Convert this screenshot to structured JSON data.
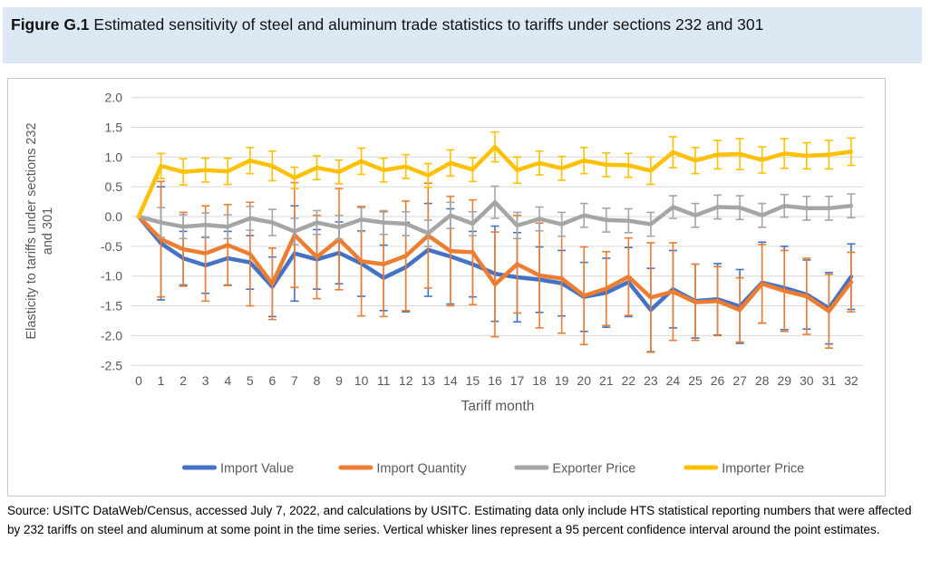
{
  "figure": {
    "label": "Figure G.1",
    "title_rest": " Estimated sensitivity of steel and aluminum trade statistics to tariffs under sections 232 and 301"
  },
  "source_note": "Source: USITC DataWeb/Census, accessed July 7, 2022, and calculations by USITC. Estimating data only include HTS statistical reporting numbers that were affected by 232 tariffs on steel and aluminum at some point in the time series. Vertical whisker lines represent a 95 percent confidence interval around the point estimates.",
  "colors": {
    "title_band_bg": "#dde8f5",
    "axis_text": "#595959",
    "gridline": "#d9d9d9",
    "chart_border": "#c9c9c9"
  },
  "chart_data": {
    "type": "line",
    "title": "Estimated sensitivity of steel and aluminum trade statistics to tariffs under sections 232 and 301",
    "xlabel": "Tariff month",
    "ylabel": "Elasticity to tariffs under sections 232 and 301",
    "ylabel_lines": [
      "Elasticity to tariffs under sections 232",
      "and 301"
    ],
    "x": [
      0,
      1,
      2,
      3,
      4,
      5,
      6,
      7,
      8,
      9,
      10,
      11,
      12,
      13,
      14,
      15,
      16,
      17,
      18,
      19,
      20,
      21,
      22,
      23,
      24,
      25,
      26,
      27,
      28,
      29,
      30,
      31,
      32
    ],
    "ylim": [
      -2.5,
      2.0
    ],
    "ytick_step": 0.5,
    "grid": true,
    "legend_position": "bottom",
    "error_bars": "95 percent confidence interval whiskers",
    "series": [
      {
        "name": "Import Value",
        "color": "#4472C4",
        "values": [
          0,
          -0.45,
          -0.7,
          -0.82,
          -0.7,
          -0.77,
          -1.18,
          -0.62,
          -0.72,
          -0.61,
          -0.79,
          -1.03,
          -0.85,
          -0.56,
          -0.67,
          -0.8,
          -0.96,
          -1.02,
          -1.06,
          -1.12,
          -1.35,
          -1.28,
          -1.1,
          -1.57,
          -1.22,
          -1.42,
          -1.39,
          -1.51,
          -1.11,
          -1.2,
          -1.31,
          -1.54,
          -1.01
        ],
        "ci_half_width": [
          0,
          0.95,
          0.45,
          0.47,
          0.45,
          0.45,
          0.5,
          0.8,
          0.5,
          0.52,
          0.55,
          0.55,
          0.75,
          0.78,
          0.8,
          0.55,
          0.8,
          0.75,
          0.55,
          0.55,
          0.58,
          0.58,
          0.58,
          0.7,
          0.65,
          0.62,
          0.6,
          0.62,
          0.68,
          0.7,
          0.58,
          0.6,
          0.55
        ]
      },
      {
        "name": "Import Quantity",
        "color": "#ED7D31",
        "values": [
          0,
          -0.38,
          -0.55,
          -0.62,
          -0.48,
          -0.63,
          -1.13,
          -0.31,
          -0.68,
          -0.38,
          -0.75,
          -0.8,
          -0.66,
          -0.32,
          -0.58,
          -0.6,
          -1.14,
          -0.8,
          -0.99,
          -1.04,
          -1.33,
          -1.21,
          -1.01,
          -1.36,
          -1.26,
          -1.44,
          -1.42,
          -1.57,
          -1.13,
          -1.25,
          -1.34,
          -1.59,
          -1.1
        ],
        "ci_half_width": [
          0,
          0.97,
          0.62,
          0.8,
          0.68,
          0.87,
          0.6,
          0.88,
          0.7,
          0.85,
          0.92,
          0.88,
          0.92,
          0.88,
          0.92,
          0.88,
          0.88,
          0.82,
          0.88,
          0.92,
          0.82,
          0.62,
          0.65,
          0.92,
          0.82,
          0.64,
          0.58,
          0.54,
          0.66,
          0.68,
          0.64,
          0.62,
          0.5
        ]
      },
      {
        "name": "Exporter Price",
        "color": "#A5A5A5",
        "values": [
          0,
          -0.1,
          -0.17,
          -0.14,
          -0.17,
          -0.03,
          -0.1,
          -0.25,
          -0.1,
          -0.18,
          -0.05,
          -0.1,
          -0.12,
          -0.28,
          0.02,
          -0.12,
          0.24,
          -0.15,
          -0.04,
          -0.13,
          0.02,
          -0.06,
          -0.07,
          -0.13,
          0.16,
          0.02,
          0.16,
          0.15,
          0.02,
          0.18,
          0.14,
          0.14,
          0.18
        ],
        "ci_half_width": [
          0,
          0.25,
          0.2,
          0.2,
          0.2,
          0.2,
          0.22,
          0.22,
          0.2,
          0.2,
          0.2,
          0.2,
          0.2,
          0.22,
          0.22,
          0.2,
          0.27,
          0.22,
          0.2,
          0.2,
          0.2,
          0.2,
          0.2,
          0.2,
          0.19,
          0.2,
          0.2,
          0.2,
          0.2,
          0.19,
          0.2,
          0.2,
          0.2
        ]
      },
      {
        "name": "Importer Price",
        "color": "#FFC000",
        "values": [
          0,
          0.85,
          0.75,
          0.78,
          0.76,
          0.94,
          0.85,
          0.65,
          0.82,
          0.75,
          0.93,
          0.78,
          0.84,
          0.69,
          0.9,
          0.79,
          1.17,
          0.78,
          0.9,
          0.81,
          0.94,
          0.87,
          0.86,
          0.77,
          1.08,
          0.94,
          1.04,
          1.05,
          0.95,
          1.06,
          1.02,
          1.04,
          1.09
        ],
        "ci_half_width": [
          0,
          0.21,
          0.22,
          0.2,
          0.22,
          0.22,
          0.25,
          0.18,
          0.2,
          0.2,
          0.22,
          0.2,
          0.2,
          0.2,
          0.22,
          0.2,
          0.25,
          0.22,
          0.2,
          0.2,
          0.22,
          0.2,
          0.2,
          0.23,
          0.26,
          0.22,
          0.24,
          0.26,
          0.22,
          0.25,
          0.22,
          0.24,
          0.23
        ]
      }
    ]
  }
}
